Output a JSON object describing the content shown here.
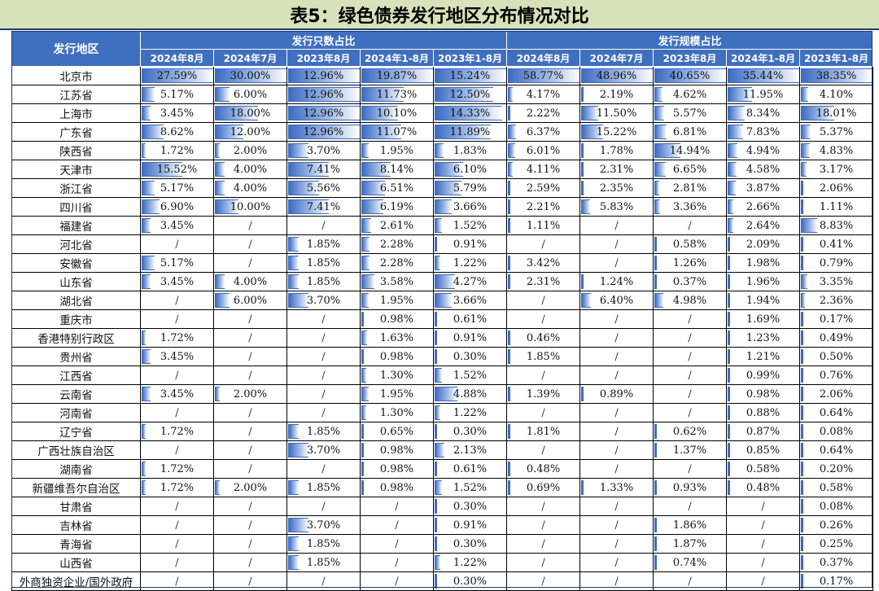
{
  "title": "表5：绿色债券发行地区分布情况对比",
  "header": {
    "region_label": "发行地区",
    "group_count": "发行只数占比",
    "group_scale": "发行规模占比",
    "periods": [
      "2024年8月",
      "2024年7月",
      "2023年8月",
      "2024年1-8月",
      "2023年1-8月"
    ]
  },
  "bar_color": "#3c6cc2",
  "header_color": "#3f6fbf",
  "title_bg": "#d6e2b9",
  "rows": [
    {
      "region": "北京市",
      "count": [
        "27.59%",
        "30.00%",
        "12.96%",
        "19.87%",
        "15.24%"
      ],
      "scale": [
        "58.77%",
        "48.96%",
        "40.65%",
        "35.44%",
        "38.35%"
      ]
    },
    {
      "region": "江苏省",
      "count": [
        "5.17%",
        "6.00%",
        "12.96%",
        "11.73%",
        "12.50%"
      ],
      "scale": [
        "4.17%",
        "2.19%",
        "4.62%",
        "11.95%",
        "4.10%"
      ]
    },
    {
      "region": "上海市",
      "count": [
        "3.45%",
        "18.00%",
        "12.96%",
        "10.10%",
        "14.33%"
      ],
      "scale": [
        "2.22%",
        "11.50%",
        "5.57%",
        "8.34%",
        "18.01%"
      ]
    },
    {
      "region": "广东省",
      "count": [
        "8.62%",
        "12.00%",
        "12.96%",
        "11.07%",
        "11.89%"
      ],
      "scale": [
        "6.37%",
        "15.22%",
        "6.81%",
        "7.83%",
        "5.37%"
      ]
    },
    {
      "region": "陕西省",
      "count": [
        "1.72%",
        "2.00%",
        "3.70%",
        "1.95%",
        "1.83%"
      ],
      "scale": [
        "6.01%",
        "1.78%",
        "14.94%",
        "4.94%",
        "4.83%"
      ]
    },
    {
      "region": "天津市",
      "count": [
        "15.52%",
        "4.00%",
        "7.41%",
        "8.14%",
        "6.10%"
      ],
      "scale": [
        "4.11%",
        "2.31%",
        "6.65%",
        "4.58%",
        "3.17%"
      ]
    },
    {
      "region": "浙江省",
      "count": [
        "5.17%",
        "4.00%",
        "5.56%",
        "6.51%",
        "5.79%"
      ],
      "scale": [
        "2.59%",
        "2.35%",
        "2.81%",
        "3.87%",
        "2.06%"
      ]
    },
    {
      "region": "四川省",
      "count": [
        "6.90%",
        "10.00%",
        "7.41%",
        "6.19%",
        "3.66%"
      ],
      "scale": [
        "2.21%",
        "5.83%",
        "3.36%",
        "2.66%",
        "1.11%"
      ]
    },
    {
      "region": "福建省",
      "count": [
        "3.45%",
        "/",
        "/",
        "2.61%",
        "1.52%"
      ],
      "scale": [
        "1.11%",
        "/",
        "/",
        "2.64%",
        "8.83%"
      ]
    },
    {
      "region": "河北省",
      "count": [
        "/",
        "/",
        "1.85%",
        "2.28%",
        "0.91%"
      ],
      "scale": [
        "/",
        "/",
        "0.58%",
        "2.09%",
        "0.41%"
      ]
    },
    {
      "region": "安徽省",
      "count": [
        "5.17%",
        "/",
        "1.85%",
        "2.28%",
        "1.22%"
      ],
      "scale": [
        "3.42%",
        "/",
        "1.26%",
        "1.98%",
        "0.79%"
      ]
    },
    {
      "region": "山东省",
      "count": [
        "3.45%",
        "4.00%",
        "1.85%",
        "3.58%",
        "4.27%"
      ],
      "scale": [
        "2.31%",
        "1.24%",
        "0.37%",
        "1.96%",
        "3.35%"
      ]
    },
    {
      "region": "湖北省",
      "count": [
        "/",
        "6.00%",
        "3.70%",
        "1.95%",
        "3.66%"
      ],
      "scale": [
        "/",
        "6.40%",
        "4.98%",
        "1.94%",
        "2.36%"
      ]
    },
    {
      "region": "重庆市",
      "count": [
        "/",
        "/",
        "/",
        "0.98%",
        "0.61%"
      ],
      "scale": [
        "/",
        "/",
        "/",
        "1.69%",
        "0.17%"
      ]
    },
    {
      "region": "香港特别行政区",
      "count": [
        "1.72%",
        "/",
        "/",
        "1.63%",
        "0.91%"
      ],
      "scale": [
        "0.46%",
        "/",
        "/",
        "1.23%",
        "0.49%"
      ]
    },
    {
      "region": "贵州省",
      "count": [
        "3.45%",
        "/",
        "/",
        "0.98%",
        "0.30%"
      ],
      "scale": [
        "1.85%",
        "/",
        "/",
        "1.21%",
        "0.50%"
      ]
    },
    {
      "region": "江西省",
      "count": [
        "/",
        "/",
        "/",
        "1.30%",
        "1.52%"
      ],
      "scale": [
        "/",
        "/",
        "/",
        "0.99%",
        "0.76%"
      ]
    },
    {
      "region": "云南省",
      "count": [
        "3.45%",
        "2.00%",
        "/",
        "1.95%",
        "4.88%"
      ],
      "scale": [
        "1.39%",
        "0.89%",
        "/",
        "0.98%",
        "2.06%"
      ]
    },
    {
      "region": "河南省",
      "count": [
        "/",
        "/",
        "/",
        "1.30%",
        "1.22%"
      ],
      "scale": [
        "/",
        "/",
        "/",
        "0.88%",
        "0.64%"
      ]
    },
    {
      "region": "辽宁省",
      "count": [
        "1.72%",
        "/",
        "1.85%",
        "0.65%",
        "0.30%"
      ],
      "scale": [
        "1.81%",
        "/",
        "0.62%",
        "0.87%",
        "0.08%"
      ]
    },
    {
      "region": "广西壮族自治区",
      "count": [
        "/",
        "/",
        "3.70%",
        "0.98%",
        "2.13%"
      ],
      "scale": [
        "/",
        "/",
        "1.37%",
        "0.85%",
        "0.64%"
      ]
    },
    {
      "region": "湖南省",
      "count": [
        "1.72%",
        "/",
        "/",
        "0.98%",
        "0.61%"
      ],
      "scale": [
        "0.48%",
        "/",
        "/",
        "0.58%",
        "0.20%"
      ]
    },
    {
      "region": "新疆维吾尔自治区",
      "count": [
        "1.72%",
        "2.00%",
        "1.85%",
        "0.98%",
        "1.52%"
      ],
      "scale": [
        "0.69%",
        "1.33%",
        "0.93%",
        "0.48%",
        "0.58%"
      ]
    },
    {
      "region": "甘肃省",
      "count": [
        "/",
        "/",
        "/",
        "/",
        "0.30%"
      ],
      "scale": [
        "/",
        "/",
        "/",
        "/",
        "0.08%"
      ]
    },
    {
      "region": "吉林省",
      "count": [
        "/",
        "/",
        "3.70%",
        "/",
        "0.91%"
      ],
      "scale": [
        "/",
        "/",
        "1.86%",
        "/",
        "0.26%"
      ]
    },
    {
      "region": "青海省",
      "count": [
        "/",
        "/",
        "1.85%",
        "/",
        "0.30%"
      ],
      "scale": [
        "/",
        "/",
        "1.87%",
        "/",
        "0.25%"
      ]
    },
    {
      "region": "山西省",
      "count": [
        "/",
        "/",
        "1.85%",
        "/",
        "1.22%"
      ],
      "scale": [
        "/",
        "/",
        "0.74%",
        "/",
        "0.37%"
      ]
    },
    {
      "region": "外商独资企业/国外政府",
      "count": [
        "/",
        "/",
        "/",
        "/",
        "0.30%"
      ],
      "scale": [
        "/",
        "/",
        "/",
        "/",
        "0.17%"
      ]
    }
  ]
}
